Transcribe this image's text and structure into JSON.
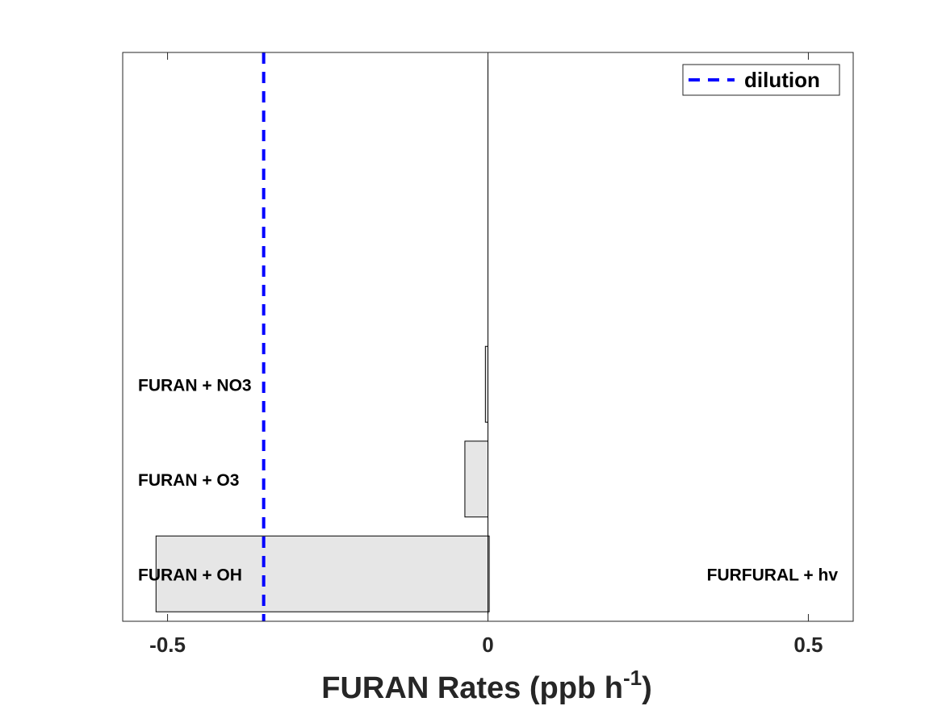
{
  "chart_data": {
    "type": "bar",
    "orientation": "horizontal",
    "xlabel": {
      "main": "FURAN Rates (ppb h",
      "sup": "-1",
      "close": ")"
    },
    "xlim": [
      -0.57,
      0.57
    ],
    "xticks": [
      -0.5,
      0,
      0.5
    ],
    "xtick_labels": [
      "-0.5",
      "0",
      "0.5"
    ],
    "slots": 6,
    "grid": false,
    "bar_color": "#e6e6e6",
    "left_bars": [
      {
        "label": "FURAN + OH",
        "value": -0.518
      },
      {
        "label": "FURAN + O3",
        "value": -0.036
      },
      {
        "label": "FURAN + NO3",
        "value": -0.004
      }
    ],
    "right_bars": [
      {
        "label": "FURFURAL + hv",
        "value": 0.002
      }
    ],
    "reference_lines": [
      {
        "name": "dilution",
        "value": -0.35,
        "color": "#0000ff",
        "style": "dashed"
      }
    ],
    "legend": {
      "position": "top-right",
      "entries": [
        "dilution"
      ]
    }
  }
}
